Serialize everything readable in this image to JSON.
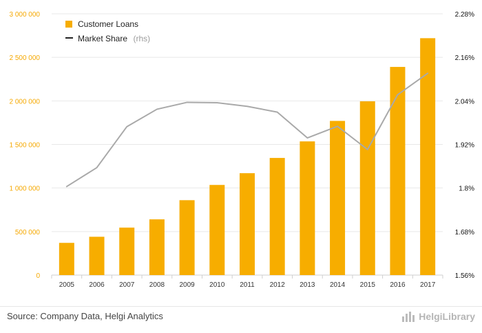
{
  "chart_data": {
    "type": "bar",
    "categories": [
      "2005",
      "2006",
      "2007",
      "2008",
      "2009",
      "2010",
      "2011",
      "2012",
      "2013",
      "2014",
      "2015",
      "2016",
      "2017"
    ],
    "series": [
      {
        "name": "Customer Loans",
        "type": "bar",
        "axis": "left",
        "color": "#f7ad00",
        "values": [
          370000,
          440000,
          545000,
          640000,
          860000,
          1035000,
          1170000,
          1345000,
          1535000,
          1770000,
          1995000,
          2390000,
          2720000
        ]
      },
      {
        "name": "Market Share",
        "name_suffix": "(rhs)",
        "type": "line",
        "axis": "right",
        "color": "#a9a9a9",
        "values": [
          1.804,
          1.856,
          1.969,
          2.017,
          2.036,
          2.035,
          2.025,
          2.009,
          1.938,
          1.97,
          1.906,
          2.057,
          2.116
        ]
      }
    ],
    "left_axis": {
      "min": 0,
      "max": 3000000,
      "ticks": [
        0,
        500000,
        1000000,
        1500000,
        2000000,
        2500000,
        3000000
      ],
      "tick_labels": [
        "0",
        "500 000",
        "1 000 000",
        "1 500 000",
        "2 000 000",
        "2 500 000",
        "3 000 000"
      ]
    },
    "right_axis": {
      "min": 1.56,
      "max": 2.28,
      "ticks": [
        1.56,
        1.68,
        1.8,
        1.92,
        2.04,
        2.16,
        2.28
      ],
      "tick_labels": [
        "1.56%",
        "1.68%",
        "1.8%",
        "1.92%",
        "2.04%",
        "2.16%",
        "2.28%"
      ]
    },
    "grid": true,
    "legend_position": "top-left"
  },
  "footer": {
    "source": "Source: Company Data, Helgi Analytics",
    "brand": "HelgiLibrary"
  },
  "colors": {
    "left_ticks": "#f5a800",
    "brand": "#b5b5b5"
  }
}
